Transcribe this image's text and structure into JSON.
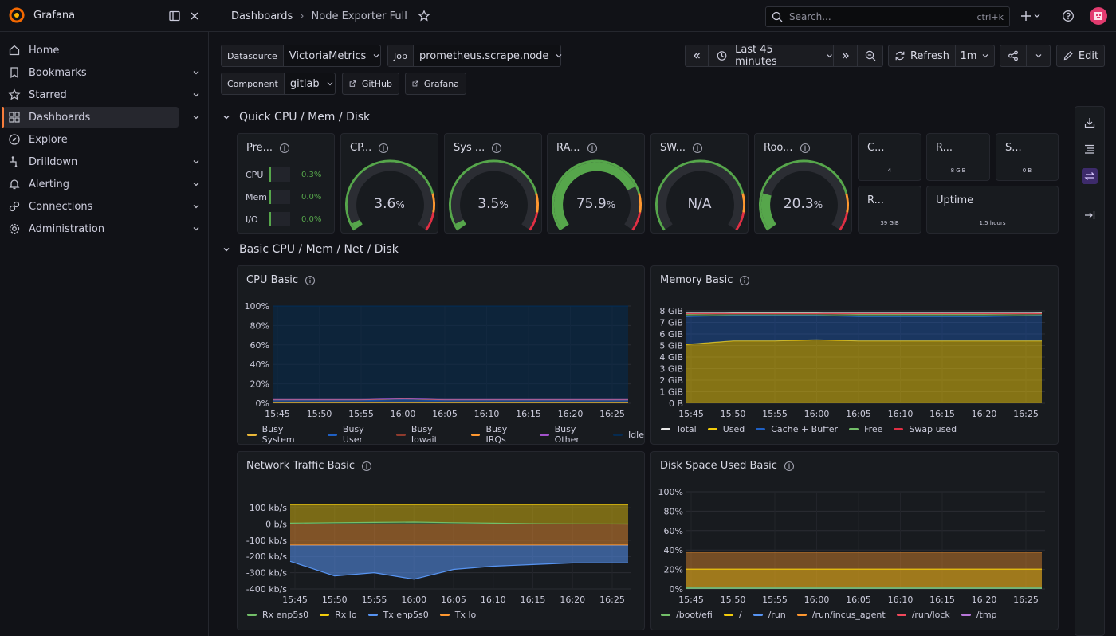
{
  "app": {
    "name": "Grafana"
  },
  "breadcrumb": {
    "parent": "Dashboards",
    "separator": "›",
    "current": "Node Exporter Full"
  },
  "search": {
    "placeholder": "Search...",
    "shortcut": "ctrl+k"
  },
  "sidebar": {
    "items": [
      {
        "label": "Home",
        "icon": "home-icon",
        "chevron": false,
        "active": false
      },
      {
        "label": "Bookmarks",
        "icon": "bookmark-icon",
        "chevron": true,
        "active": false
      },
      {
        "label": "Starred",
        "icon": "star-icon",
        "chevron": true,
        "active": false
      },
      {
        "label": "Dashboards",
        "icon": "apps-icon",
        "chevron": true,
        "active": true
      },
      {
        "label": "Explore",
        "icon": "compass-icon",
        "chevron": false,
        "active": false
      },
      {
        "label": "Drilldown",
        "icon": "drilldown-icon",
        "chevron": true,
        "active": false
      },
      {
        "label": "Alerting",
        "icon": "bell-icon",
        "chevron": true,
        "active": false
      },
      {
        "label": "Connections",
        "icon": "link-icon",
        "chevron": true,
        "active": false
      },
      {
        "label": "Administration",
        "icon": "cog-icon",
        "chevron": true,
        "active": false
      }
    ]
  },
  "variables": {
    "datasource": {
      "label": "Datasource",
      "value": "VictoriaMetrics"
    },
    "job": {
      "label": "Job",
      "value": "prometheus.scrape.node"
    },
    "component": {
      "label": "Component",
      "value": "gitlab"
    }
  },
  "links": {
    "github": "GitHub",
    "grafana": "Grafana"
  },
  "toolbar": {
    "time_range": "Last 45 minutes",
    "refresh": "Refresh",
    "interval": "1m",
    "edit": "Edit"
  },
  "rows": {
    "quick": "Quick CPU / Mem / Disk",
    "basic": "Basic CPU / Mem / Net / Disk"
  },
  "quick_panels": {
    "pressure": {
      "title": "Pre...",
      "rows": [
        {
          "label": "CPU",
          "value": "0.3%"
        },
        {
          "label": "Mem",
          "value": "0.0%"
        },
        {
          "label": "I/O",
          "value": "0.0%"
        }
      ]
    },
    "gauges": [
      {
        "title": "CP...",
        "value": "3.6",
        "unit": "%",
        "percent": 3.6
      },
      {
        "title": "Sys ...",
        "value": "3.5",
        "unit": "%",
        "percent": 3.5
      },
      {
        "title": "RA...",
        "value": "75.9",
        "unit": "%",
        "percent": 75.9
      },
      {
        "title": "SW...",
        "value": "N/A",
        "unit": "",
        "percent": 0
      },
      {
        "title": "Roo...",
        "value": "20.3",
        "unit": "%",
        "percent": 20.3
      }
    ],
    "stats": [
      {
        "title": "C...",
        "value": "4"
      },
      {
        "title": "R...",
        "value": "8 GiB"
      },
      {
        "title": "S...",
        "value": "0 B"
      },
      {
        "title": "R...",
        "value": "39 GiB"
      },
      {
        "title": "Uptime",
        "value": "1.5 hours"
      }
    ]
  },
  "colors": {
    "accent": "#f87d3c",
    "green": "#56a64b",
    "yellow": "#f2cc0c",
    "red": "#e02f44",
    "blue": "#3274d9"
  },
  "chart_data": [
    {
      "type": "area",
      "title": "CPU Basic",
      "x": [
        "15:45",
        "15:50",
        "15:55",
        "16:00",
        "16:05",
        "16:10",
        "16:15",
        "16:20",
        "16:25"
      ],
      "y_ticks": [
        "0%",
        "20%",
        "40%",
        "60%",
        "80%",
        "100%"
      ],
      "ylim": [
        0,
        100
      ],
      "series": [
        {
          "name": "Busy System",
          "color": "#eab839",
          "values": [
            1,
            1,
            1,
            1,
            1,
            1,
            1,
            1,
            1
          ]
        },
        {
          "name": "Busy User",
          "color": "#1f60c4",
          "values": [
            2,
            2,
            2,
            3,
            2,
            2,
            2,
            2,
            2
          ]
        },
        {
          "name": "Busy Iowait",
          "color": "#8f3b2d",
          "values": [
            0.5,
            0.5,
            0.5,
            0.5,
            0.5,
            0.5,
            0.5,
            0.5,
            0.5
          ]
        },
        {
          "name": "Busy IRQs",
          "color": "#ff9830",
          "values": [
            0.3,
            0.3,
            0.3,
            0.3,
            0.3,
            0.3,
            0.3,
            0.3,
            0.3
          ]
        },
        {
          "name": "Busy Other",
          "color": "#a352cc",
          "values": [
            0.1,
            0.1,
            0.1,
            0.1,
            0.1,
            0.1,
            0.1,
            0.1,
            0.1
          ]
        },
        {
          "name": "Idle",
          "color": "#052b51",
          "values": [
            96,
            96,
            96,
            95,
            96,
            96,
            96,
            96,
            96
          ]
        }
      ]
    },
    {
      "type": "area",
      "title": "Memory Basic",
      "x": [
        "15:45",
        "15:50",
        "15:55",
        "16:00",
        "16:05",
        "16:10",
        "16:15",
        "16:20",
        "16:25"
      ],
      "y_ticks": [
        "0 B",
        "1 GiB",
        "2 GiB",
        "3 GiB",
        "4 GiB",
        "5 GiB",
        "6 GiB",
        "7 GiB",
        "8 GiB"
      ],
      "ylim": [
        0,
        8
      ],
      "series": [
        {
          "name": "Total",
          "color": "#e8e8e8",
          "values": [
            7.8,
            7.8,
            7.8,
            7.8,
            7.8,
            7.8,
            7.8,
            7.8,
            7.8
          ]
        },
        {
          "name": "Used",
          "color": "#f2cc0c",
          "values": [
            5.1,
            5.4,
            5.4,
            5.5,
            5.4,
            5.4,
            5.4,
            5.4,
            5.4
          ]
        },
        {
          "name": "Cache + Buffer",
          "color": "#1f60c4",
          "values": [
            2.4,
            2.2,
            2.2,
            2.1,
            2.1,
            2.1,
            2.1,
            2.1,
            2.2
          ]
        },
        {
          "name": "Free",
          "color": "#73bf69",
          "values": [
            0.2,
            0.2,
            0.2,
            0.2,
            0.2,
            0.2,
            0.2,
            0.2,
            0.2
          ]
        },
        {
          "name": "Swap used",
          "color": "#e02f44",
          "values": [
            0,
            0,
            0,
            0,
            0,
            0,
            0,
            0,
            0
          ]
        }
      ]
    },
    {
      "type": "area",
      "title": "Network Traffic Basic",
      "x": [
        "15:45",
        "15:50",
        "15:55",
        "16:00",
        "16:05",
        "16:10",
        "16:15",
        "16:20",
        "16:25"
      ],
      "y_ticks": [
        "-400 kb/s",
        "-300 kb/s",
        "-200 kb/s",
        "-100 kb/s",
        "0 b/s",
        "100 kb/s"
      ],
      "ylim": [
        -400,
        120
      ],
      "series": [
        {
          "name": "Rx enp5s0",
          "color": "#73bf69",
          "values": [
            5,
            8,
            10,
            12,
            8,
            5,
            2,
            1,
            0
          ]
        },
        {
          "name": "Rx lo",
          "color": "#f2cc0c",
          "values": [
            120,
            120,
            120,
            120,
            120,
            120,
            120,
            120,
            120
          ]
        },
        {
          "name": "Tx enp5s0",
          "color": "#5794f2",
          "values": [
            -230,
            -320,
            -300,
            -340,
            -280,
            -260,
            -250,
            -240,
            -240
          ]
        },
        {
          "name": "Tx lo",
          "color": "#ff9830",
          "values": [
            -130,
            -130,
            -130,
            -130,
            -130,
            -130,
            -130,
            -130,
            -130
          ]
        }
      ]
    },
    {
      "type": "area",
      "title": "Disk Space Used Basic",
      "x": [
        "15:45",
        "15:50",
        "15:55",
        "16:00",
        "16:05",
        "16:10",
        "16:15",
        "16:20",
        "16:25"
      ],
      "y_ticks": [
        "0%",
        "20%",
        "40%",
        "60%",
        "80%",
        "100%"
      ],
      "ylim": [
        0,
        100
      ],
      "series": [
        {
          "name": "/boot/efi",
          "color": "#73bf69",
          "values": [
            1,
            1,
            1,
            1,
            1,
            1,
            1,
            1,
            1
          ]
        },
        {
          "name": "/",
          "color": "#f2cc0c",
          "values": [
            20.3,
            20.3,
            20.3,
            20.3,
            20.3,
            20.3,
            20.3,
            20.3,
            20.3
          ]
        },
        {
          "name": "/run",
          "color": "#5794f2",
          "values": [
            1,
            1,
            1,
            1,
            1,
            1,
            1,
            1,
            1
          ]
        },
        {
          "name": "/run/incus_agent",
          "color": "#ff9830",
          "values": [
            38,
            38,
            38,
            38,
            38,
            38,
            38,
            38,
            38
          ]
        },
        {
          "name": "/run/lock",
          "color": "#f2495c",
          "values": [
            0,
            0,
            0,
            0,
            0,
            0,
            0,
            0,
            0
          ]
        },
        {
          "name": "/tmp",
          "color": "#b877d9",
          "values": [
            0.5,
            0.5,
            0.5,
            0.5,
            0.5,
            0.5,
            0.5,
            0.5,
            0.5
          ]
        }
      ]
    }
  ]
}
